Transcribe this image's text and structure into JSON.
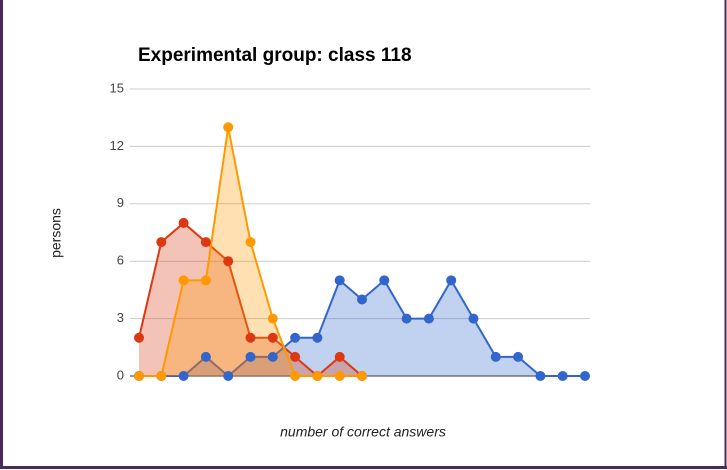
{
  "chart_data": {
    "type": "area",
    "title": "Experimental group: class 118",
    "x_label": "number of correct answers",
    "y_label": "persons",
    "categories": [
      null,
      null,
      null,
      null,
      null,
      null,
      null,
      null,
      null,
      null,
      null,
      null,
      null,
      null,
      null,
      null,
      null,
      null,
      null,
      null,
      null
    ],
    "series": [
      {
        "color": "#3366cc",
        "values": [
          0,
          0,
          0,
          1,
          0,
          1,
          1,
          2,
          2,
          5,
          4,
          5,
          3,
          3,
          5,
          3,
          1,
          1,
          0,
          0,
          0
        ]
      },
      {
        "color": "#dc3912",
        "values": [
          2,
          7,
          8,
          7,
          6,
          2,
          2,
          1,
          0,
          1,
          0,
          null,
          null,
          null,
          null,
          null,
          null,
          null,
          null,
          null,
          null
        ]
      },
      {
        "color": "#ff9900",
        "values": [
          0,
          0,
          5,
          5,
          13,
          7,
          3,
          0,
          0,
          0,
          0,
          null,
          null,
          null,
          null,
          null,
          null,
          null,
          null,
          null,
          null
        ]
      }
    ],
    "ylim": [
      0,
      15
    ],
    "yticks": [
      0,
      3,
      6,
      9,
      12,
      15
    ],
    "grid": true
  }
}
